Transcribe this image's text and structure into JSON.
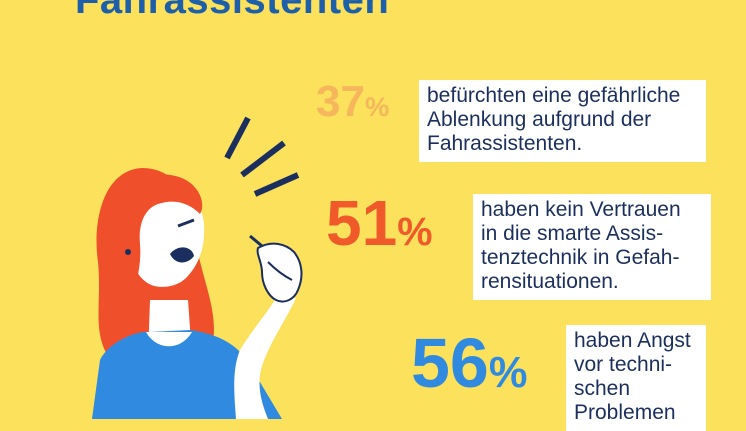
{
  "title": "Fahrassistenten",
  "colors": {
    "background": "#fbe15c",
    "title": "#1d5fa8",
    "stat1": "#f6b75c",
    "stat2": "#f0592a",
    "stat3": "#2f8ae0",
    "text": "#1b2f5e"
  },
  "stats": [
    {
      "value": "37",
      "unit": "%",
      "text": "befürchten eine gefährliche\nAblenkung aufgrund der\nFahrassistenten."
    },
    {
      "value": "51",
      "unit": "%",
      "text": "haben kein Vertrauen\nin die smarte Assis-\ntenztechnik in Gefah-\nrensituationen."
    },
    {
      "value": "56",
      "unit": "%",
      "text": "haben Angst\nvor techni-\nschen\nProblemen"
    }
  ]
}
